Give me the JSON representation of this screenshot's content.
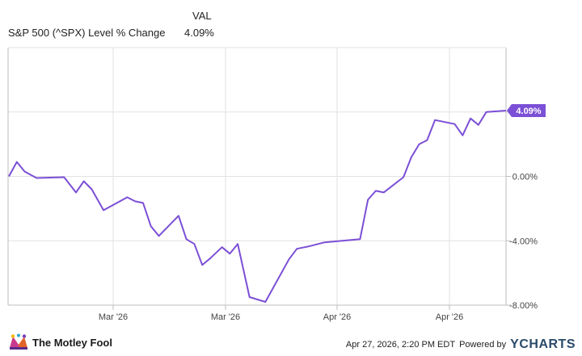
{
  "legend": {
    "column_header": "VAL",
    "series_name": "S&P 500 (^SPX) Level % Change",
    "series_value": "4.09%"
  },
  "footer": {
    "brand": "The Motley Fool",
    "timestamp": "Apr 27, 2026, 2:20 PM EDT",
    "powered_by": "Powered by",
    "provider": "YCHARTS"
  },
  "colors": {
    "line": "#7b4fd6",
    "grid": "#e2e2e2",
    "axis": "#bdbdbd"
  },
  "chart_data": {
    "type": "line",
    "title": "",
    "xlabel": "",
    "ylabel": "",
    "ylim": [
      -8,
      8
    ],
    "y_ticks": [
      -8,
      -4,
      0,
      4
    ],
    "y_tick_labels": [
      "-8.00%",
      "-4.00%",
      "0.00%",
      ""
    ],
    "x_tick_labels": [
      "Mar '26",
      "Mar '26",
      "Apr '26",
      "Apr '26"
    ],
    "end_label": "4.09%",
    "grid": true,
    "series": [
      {
        "name": "S&P 500 (^SPX) Level % Change",
        "x": [
          0,
          2,
          4,
          7,
          14,
          17,
          19,
          21,
          24,
          30,
          32,
          34,
          36,
          38,
          43,
          45,
          47,
          49,
          51,
          54,
          56,
          58,
          61,
          65,
          71,
          73,
          75,
          76,
          80,
          89,
          91,
          93,
          95,
          100,
          102,
          104,
          106,
          108,
          113,
          115,
          117,
          119,
          121,
          126
        ],
        "values": [
          0.0,
          0.9,
          0.3,
          -0.1,
          -0.05,
          -1.0,
          -0.3,
          -0.8,
          -2.1,
          -1.3,
          -1.55,
          -1.65,
          -3.1,
          -3.7,
          -2.45,
          -3.9,
          -4.2,
          -5.5,
          -5.1,
          -4.4,
          -4.8,
          -4.2,
          -7.5,
          -7.8,
          -5.15,
          -4.5,
          -4.4,
          -4.35,
          -4.1,
          -3.9,
          -1.45,
          -0.9,
          -1.0,
          -0.05,
          1.2,
          2.0,
          2.25,
          3.5,
          3.25,
          2.55,
          3.6,
          3.2,
          4.0,
          4.09
        ]
      }
    ]
  }
}
